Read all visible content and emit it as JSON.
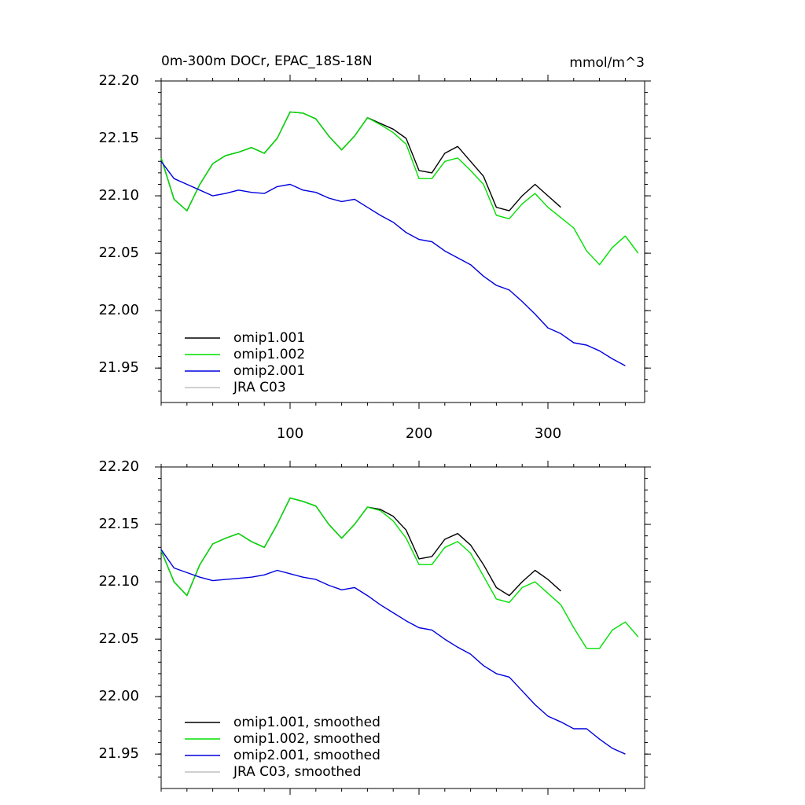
{
  "chart_data": [
    {
      "type": "line",
      "title": "0m-300m DOCr, EPAC_18S-18N",
      "units": "mmol/m^3",
      "x": [
        0,
        10,
        20,
        30,
        40,
        50,
        60,
        70,
        80,
        90,
        100,
        110,
        120,
        130,
        140,
        150,
        160,
        170,
        180,
        190,
        200,
        210,
        220,
        230,
        240,
        250,
        260,
        270,
        280,
        290,
        300,
        310,
        320,
        330,
        340,
        350,
        360,
        370
      ],
      "xlim": [
        0,
        375
      ],
      "xticks": [
        100,
        200,
        300
      ],
      "ylim": [
        21.92,
        22.2
      ],
      "yticks": [
        {
          "value": 22.2,
          "label": "22.20"
        },
        22.15,
        {
          "value": 22.1,
          "label": "22.10"
        },
        22.05,
        {
          "value": 22.0,
          "label": "22.00"
        },
        21.95
      ],
      "legend": "lower left",
      "series": [
        {
          "name": "omip1.001",
          "color": "#000000",
          "values": [
            22.133,
            22.097,
            22.087,
            22.11,
            22.128,
            22.135,
            22.138,
            22.142,
            22.137,
            22.15,
            22.173,
            22.172,
            22.167,
            22.152,
            22.14,
            22.152,
            22.168,
            22.163,
            22.158,
            22.15,
            22.122,
            22.12,
            22.137,
            22.143,
            22.13,
            22.117,
            22.09,
            22.087,
            22.1,
            22.11,
            22.1,
            22.09,
            null,
            null,
            null,
            null,
            null,
            null
          ]
        },
        {
          "name": "omip1.002",
          "color": "#00e000",
          "values": [
            22.133,
            22.097,
            22.087,
            22.11,
            22.128,
            22.135,
            22.138,
            22.142,
            22.137,
            22.15,
            22.173,
            22.172,
            22.167,
            22.152,
            22.14,
            22.152,
            22.168,
            22.162,
            22.155,
            22.145,
            22.115,
            22.115,
            22.13,
            22.133,
            22.122,
            22.11,
            22.083,
            22.08,
            22.093,
            22.102,
            22.09,
            22.081,
            22.072,
            22.052,
            22.04,
            22.055,
            22.065,
            22.05
          ]
        },
        {
          "name": "omip2.001",
          "color": "#0000dd",
          "values": [
            22.13,
            22.115,
            22.11,
            22.105,
            22.1,
            22.102,
            22.105,
            22.103,
            22.102,
            22.108,
            22.11,
            22.105,
            22.103,
            22.098,
            22.095,
            22.097,
            22.09,
            22.083,
            22.077,
            22.068,
            22.062,
            22.06,
            22.052,
            22.046,
            22.04,
            22.03,
            22.022,
            22.018,
            22.008,
            21.997,
            21.985,
            21.98,
            21.972,
            21.97,
            21.965,
            21.958,
            21.952,
            null
          ]
        },
        {
          "name": "JRA C03",
          "color": "#c0c0c0"
        }
      ]
    },
    {
      "type": "line",
      "x": [
        0,
        10,
        20,
        30,
        40,
        50,
        60,
        70,
        80,
        90,
        100,
        110,
        120,
        130,
        140,
        150,
        160,
        170,
        180,
        190,
        200,
        210,
        220,
        230,
        240,
        250,
        260,
        270,
        280,
        290,
        300,
        310,
        320,
        330,
        340,
        350,
        360,
        370
      ],
      "xlim": [
        0,
        375
      ],
      "xticks": [
        100,
        200,
        300
      ],
      "ylim": [
        21.92,
        22.2
      ],
      "yticks": [
        {
          "value": 22.2,
          "label": "22.20"
        },
        22.15,
        {
          "value": 22.1,
          "label": "22.10"
        },
        22.05,
        {
          "value": 22.0,
          "label": "22.00"
        },
        21.95
      ],
      "legend": "lower left",
      "series": [
        {
          "name": "omip1.001, smoothed",
          "color": "#000000",
          "values": [
            22.127,
            22.1,
            22.088,
            22.115,
            22.133,
            22.138,
            22.142,
            22.135,
            22.13,
            22.15,
            22.173,
            22.17,
            22.166,
            22.15,
            22.138,
            22.15,
            22.165,
            22.163,
            22.157,
            22.145,
            22.12,
            22.122,
            22.137,
            22.142,
            22.132,
            22.115,
            22.095,
            22.088,
            22.1,
            22.11,
            22.102,
            22.092,
            null,
            null,
            null,
            null,
            null,
            null
          ]
        },
        {
          "name": "omip1.002, smoothed",
          "color": "#00e000",
          "values": [
            22.127,
            22.1,
            22.088,
            22.115,
            22.133,
            22.138,
            22.142,
            22.135,
            22.13,
            22.15,
            22.173,
            22.17,
            22.166,
            22.15,
            22.138,
            22.15,
            22.165,
            22.162,
            22.153,
            22.138,
            22.115,
            22.115,
            22.13,
            22.135,
            22.125,
            22.105,
            22.085,
            22.082,
            22.095,
            22.1,
            22.09,
            22.08,
            22.06,
            22.042,
            22.042,
            22.058,
            22.065,
            22.052
          ]
        },
        {
          "name": "omip2.001, smoothed",
          "color": "#0000dd",
          "values": [
            22.128,
            22.112,
            22.108,
            22.104,
            22.101,
            22.102,
            22.103,
            22.104,
            22.106,
            22.11,
            22.107,
            22.104,
            22.102,
            22.097,
            22.093,
            22.095,
            22.088,
            22.08,
            22.073,
            22.066,
            22.06,
            22.058,
            22.05,
            22.043,
            22.037,
            22.027,
            22.02,
            22.017,
            22.005,
            21.993,
            21.983,
            21.978,
            21.972,
            21.972,
            21.963,
            21.955,
            21.95,
            null
          ]
        },
        {
          "name": "JRA C03, smoothed",
          "color": "#c0c0c0"
        }
      ]
    }
  ]
}
